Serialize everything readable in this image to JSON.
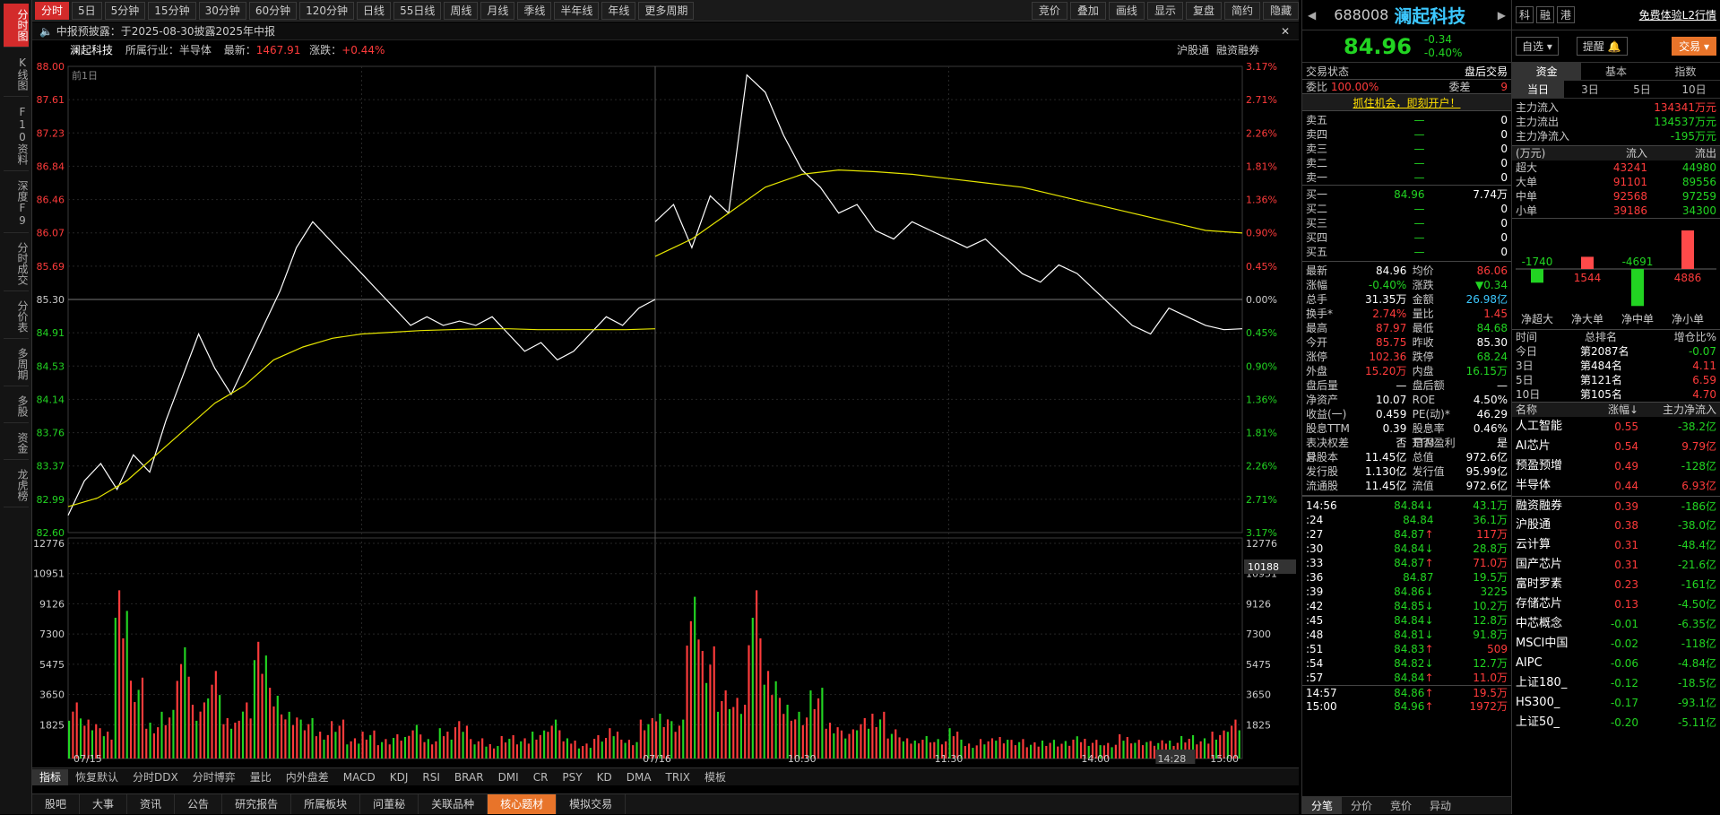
{
  "left_tabs": [
    "分时图",
    "K线图",
    "F10资料",
    "深度F9",
    "分时成交",
    "分价表",
    "多周期",
    "多股",
    "资金",
    "龙虎榜"
  ],
  "periods": [
    "分时",
    "5日",
    "5分钟",
    "15分钟",
    "30分钟",
    "60分钟",
    "120分钟",
    "日线",
    "55日线",
    "周线",
    "月线",
    "季线",
    "半年线",
    "年线",
    "更多周期"
  ],
  "tools": [
    "竞价",
    "叠加",
    "画线",
    "显示",
    "复盘",
    "简约",
    "隐藏"
  ],
  "notice": "中报预披露：于2025-08-30披露2025年中报",
  "info": {
    "name": "澜起科技",
    "industry_label": "所属行业：",
    "industry": "半导体",
    "latest_label": "最新：",
    "latest": "1467.91",
    "change_label": "涨跌：",
    "change": "+0.44%",
    "right1": "沪股通",
    "right2": "融资融券",
    "prev_day": "前1日"
  },
  "chart_data": {
    "type": "line",
    "prev_close": 85.3,
    "ylim": [
      82.6,
      88.0
    ],
    "price_ticks": [
      "88.00",
      "87.61",
      "87.23",
      "86.84",
      "86.46",
      "86.07",
      "85.69",
      "85.30",
      "84.91",
      "84.53",
      "84.14",
      "83.76",
      "83.37",
      "82.99",
      "82.60"
    ],
    "pct_ticks": [
      "3.17%",
      "2.71%",
      "2.26%",
      "1.81%",
      "1.36%",
      "0.90%",
      "0.45%",
      "0.00%",
      "0.45%",
      "0.90%",
      "1.36%",
      "1.81%",
      "2.26%",
      "2.71%",
      "3.17%"
    ],
    "vol_ticks": [
      "12776",
      "10951",
      "9126",
      "7300",
      "5475",
      "3650",
      "1825"
    ],
    "vol_current": "10188",
    "x_labels": [
      "07/15",
      "07/16",
      "10:30",
      "11:30",
      "14:00",
      "14:28",
      "15:00"
    ],
    "day1_price": [
      82.8,
      83.2,
      83.4,
      83.1,
      83.5,
      83.3,
      83.9,
      84.4,
      84.9,
      84.5,
      84.2,
      84.6,
      85.0,
      85.4,
      85.9,
      86.2,
      86.0,
      85.8,
      85.6,
      85.4,
      85.2,
      85.0,
      85.1,
      85.0,
      85.05,
      85.0,
      85.1,
      84.9,
      84.7,
      84.8,
      84.6,
      84.7,
      84.9,
      85.1,
      85.0,
      85.2,
      85.3
    ],
    "day1_avg": [
      82.9,
      83.0,
      83.2,
      83.5,
      83.8,
      84.1,
      84.3,
      84.6,
      84.75,
      84.85,
      84.9,
      84.92,
      84.94,
      84.95,
      84.96,
      84.96,
      84.95,
      84.95,
      84.95,
      84.95,
      84.96
    ],
    "day2_price": [
      86.2,
      86.4,
      85.9,
      86.5,
      86.3,
      87.9,
      87.7,
      87.2,
      86.8,
      86.6,
      86.3,
      86.4,
      86.1,
      86.0,
      86.2,
      86.1,
      86.0,
      85.9,
      86.0,
      85.8,
      85.6,
      85.5,
      85.7,
      85.6,
      85.4,
      85.2,
      85.0,
      84.9,
      85.2,
      85.1,
      85.0,
      84.95,
      84.96
    ],
    "day2_avg": [
      85.8,
      86.0,
      86.3,
      86.6,
      86.75,
      86.8,
      86.78,
      86.75,
      86.7,
      86.65,
      86.6,
      86.5,
      86.4,
      86.3,
      86.2,
      86.1,
      86.07
    ],
    "vol_heights": [
      0.3,
      0.2,
      0.15,
      0.9,
      0.4,
      0.2,
      0.25,
      0.55,
      0.3,
      0.45,
      0.2,
      0.3,
      0.6,
      0.35,
      0.25,
      0.2,
      0.15,
      0.2,
      0.1,
      0.15,
      0.1,
      0.12,
      0.18,
      0.1,
      0.15,
      0.2,
      0.1,
      0.08,
      0.12,
      0.1,
      0.15,
      0.2,
      0.1,
      0.08,
      0.12,
      0.15,
      0.1,
      0.2,
      0.25,
      0.2,
      0.8,
      0.6,
      0.35,
      0.3,
      0.9,
      0.45,
      0.3,
      0.25,
      0.35,
      0.2,
      0.15,
      0.2,
      0.25,
      0.15,
      0.1,
      0.12,
      0.1,
      0.15,
      0.08,
      0.1,
      0.12,
      0.1,
      0.08,
      0.1,
      0.09,
      0.11,
      0.1,
      0.08,
      0.12,
      0.1,
      0.09,
      0.1,
      0.12,
      0.1,
      0.15,
      0.2
    ]
  },
  "ind_tabs": [
    "指标",
    "恢复默认",
    "分时DDX",
    "分时博弈",
    "量比",
    "内外盘差",
    "MACD",
    "KDJ",
    "RSI",
    "BRAR",
    "DMI",
    "CR",
    "PSY",
    "KD",
    "DMA",
    "TRIX",
    "模板"
  ],
  "bottom_tabs": [
    "股吧",
    "大事",
    "资讯",
    "公告",
    "研究报告",
    "所属板块",
    "问董秘",
    "关联品种",
    "核心题材",
    "模拟交易"
  ],
  "quote": {
    "code": "688008",
    "name": "澜起科技",
    "price": "84.96",
    "chg": "-0.34",
    "pct": "-0.40%",
    "tags": [
      "科",
      "融",
      "港"
    ],
    "promo": "免费体验L2行情",
    "zixuan": "自选",
    "tixing": "提醒",
    "jiaoyi": "交易"
  },
  "trade_status": {
    "label": "交易状态",
    "value": "盘后交易",
    "webi_label": "委比",
    "webi": "100.00%",
    "weicha_label": "委差",
    "weicha": "9",
    "banner": "抓住机会，即刻开户！"
  },
  "asks": [
    {
      "l": "卖五",
      "p": "—",
      "v": "0"
    },
    {
      "l": "卖四",
      "p": "—",
      "v": "0"
    },
    {
      "l": "卖三",
      "p": "—",
      "v": "0"
    },
    {
      "l": "卖二",
      "p": "—",
      "v": "0"
    },
    {
      "l": "卖一",
      "p": "—",
      "v": "0"
    }
  ],
  "bids": [
    {
      "l": "买一",
      "p": "84.96",
      "v": "7.74万"
    },
    {
      "l": "买二",
      "p": "—",
      "v": "0"
    },
    {
      "l": "买三",
      "p": "—",
      "v": "0"
    },
    {
      "l": "买四",
      "p": "—",
      "v": "0"
    },
    {
      "l": "买五",
      "p": "—",
      "v": "0"
    }
  ],
  "stats": [
    [
      "最新",
      "84.96",
      "均价",
      "86.06"
    ],
    [
      "涨幅",
      "-0.40%",
      "涨跌",
      "▼0.34"
    ],
    [
      "总手",
      "31.35万",
      "金额",
      "26.98亿"
    ],
    [
      "换手*",
      "2.74%",
      "量比",
      "1.45"
    ],
    [
      "最高",
      "87.97",
      "最低",
      "84.68"
    ],
    [
      "今开",
      "85.75",
      "昨收",
      "85.30"
    ],
    [
      "涨停",
      "102.36",
      "跌停",
      "68.24"
    ],
    [
      "外盘",
      "15.20万",
      "内盘",
      "16.15万"
    ],
    [
      "盘后量",
      "—",
      "盘后额",
      "—"
    ],
    [
      "净资产",
      "10.07",
      "ROE",
      "4.50%"
    ],
    [
      "收益(一)",
      "0.459",
      "PE(动)*",
      "46.29"
    ],
    [
      "股息TTM",
      "0.39",
      "股息率TTM",
      "0.46%"
    ],
    [
      "表决权差异",
      "否",
      "是否盈利",
      "是"
    ],
    [
      "总股本",
      "11.45亿",
      "总值",
      "972.6亿"
    ],
    [
      "发行股",
      "1.130亿",
      "发行值",
      "95.99亿"
    ],
    [
      "流通股",
      "11.45亿",
      "流值",
      "972.6亿"
    ]
  ],
  "ticks": [
    [
      "14:56",
      "84.84",
      "↓",
      "43.1万"
    ],
    [
      ":24",
      "84.84",
      "",
      "36.1万"
    ],
    [
      ":27",
      "84.87",
      "↑",
      "117万"
    ],
    [
      ":30",
      "84.84",
      "↓",
      "28.8万"
    ],
    [
      ":33",
      "84.87",
      "↑",
      "71.0万"
    ],
    [
      ":36",
      "84.87",
      "",
      "19.5万"
    ],
    [
      ":39",
      "84.86",
      "↓",
      "3225"
    ],
    [
      ":42",
      "84.85",
      "↓",
      "10.2万"
    ],
    [
      ":45",
      "84.84",
      "↓",
      "12.8万"
    ],
    [
      ":48",
      "84.81",
      "↓",
      "91.8万"
    ],
    [
      ":51",
      "84.83",
      "↑",
      "509"
    ],
    [
      ":54",
      "84.82",
      "↓",
      "12.7万"
    ],
    [
      ":57",
      "84.84",
      "↑",
      "11.0万"
    ],
    [
      "14:57",
      "84.86",
      "↑",
      "19.5万"
    ],
    [
      "15:00",
      "84.96",
      "↑",
      "1972万"
    ]
  ],
  "tick_tabs": [
    "分笔",
    "分价",
    "竞价",
    "异动"
  ],
  "fund_tabs": [
    "资金",
    "基本",
    "指数"
  ],
  "period_tabs": [
    "当日",
    "3日",
    "5日",
    "10日"
  ],
  "fund_flow": [
    [
      "主力流入",
      "134341万元"
    ],
    [
      "主力流出",
      "134537万元"
    ],
    [
      "主力净流入",
      "-195万元"
    ]
  ],
  "flow_table": {
    "unit": "(万元)",
    "in": "流入",
    "out": "流出",
    "rows": [
      [
        "超大",
        "43241",
        "44980"
      ],
      [
        "大单",
        "91101",
        "89556"
      ],
      [
        "中单",
        "92568",
        "97259"
      ],
      [
        "小单",
        "39186",
        "34300"
      ]
    ]
  },
  "net_bars": {
    "values": [
      -1740,
      1544,
      -4691,
      4886
    ],
    "labels": [
      "-1740",
      "1544",
      "-4691",
      "4886"
    ],
    "cats": [
      "净超大",
      "净大单",
      "净中单",
      "净小单"
    ]
  },
  "rank": {
    "h1": "时间",
    "h2": "总排名",
    "h3": "增仓比%",
    "rows": [
      [
        "今日",
        "第2087名",
        "-0.07"
      ],
      [
        "3日",
        "第484名",
        "4.11"
      ],
      [
        "5日",
        "第121名",
        "6.59"
      ],
      [
        "10日",
        "第105名",
        "4.70"
      ]
    ]
  },
  "concepts": {
    "h1": "名称",
    "h2": "涨幅↓",
    "h3": "主力净流入",
    "rows": [
      [
        "人工智能",
        "0.55",
        "-38.2亿"
      ],
      [
        "AI芯片",
        "0.54",
        "9.79亿"
      ],
      [
        "预盈预增",
        "0.49",
        "-128亿"
      ],
      [
        "半导体",
        "0.44",
        "6.93亿"
      ],
      [
        "融资融券",
        "0.39",
        "-186亿"
      ],
      [
        "沪股通",
        "0.38",
        "-38.0亿"
      ],
      [
        "云计算",
        "0.31",
        "-48.4亿"
      ],
      [
        "国产芯片",
        "0.31",
        "-21.6亿"
      ],
      [
        "富时罗素",
        "0.23",
        "-161亿"
      ],
      [
        "存储芯片",
        "0.13",
        "-4.50亿"
      ],
      [
        "中芯概念",
        "-0.01",
        "-6.35亿"
      ],
      [
        "MSCI中国",
        "-0.02",
        "-118亿"
      ],
      [
        "AIPC",
        "-0.06",
        "-4.84亿"
      ],
      [
        "上证180_",
        "-0.12",
        "-18.5亿"
      ],
      [
        "HS300_",
        "-0.17",
        "-93.1亿"
      ],
      [
        "上证50_",
        "-0.20",
        "-5.11亿"
      ]
    ]
  }
}
